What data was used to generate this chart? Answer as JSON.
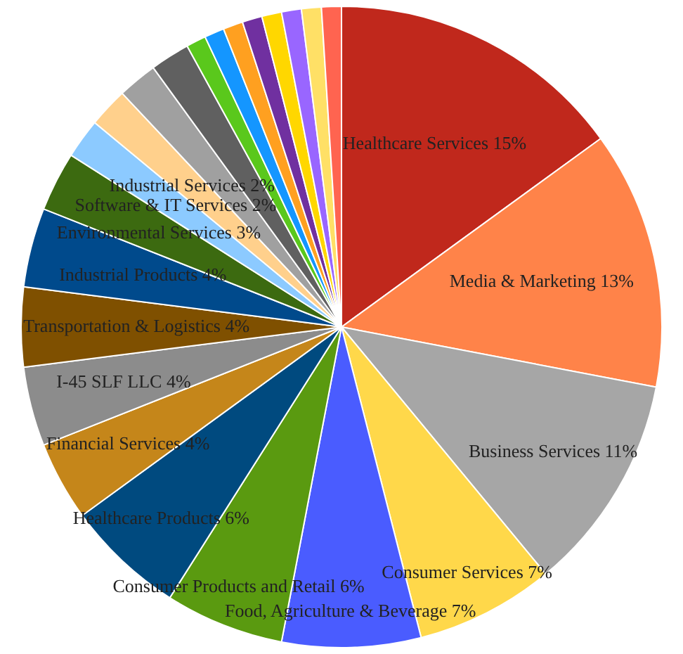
{
  "chart_data": {
    "type": "pie",
    "categories": [
      "Healthcare Services",
      "Media & Marketing",
      "Business Services",
      "Consumer Services",
      "Food, Agriculture & Beverage",
      "Consumer Products and Retail",
      "Healthcare Products",
      "Financial Services",
      "I-45 SLF LLC",
      "Transportation & Logistics",
      "Industrial Products",
      "Environmental Services",
      "Software & IT Services",
      "Industrial Services",
      null,
      null,
      null,
      null,
      null,
      null,
      null,
      null,
      null,
      null
    ],
    "values": [
      15,
      13,
      11,
      7,
      7,
      6,
      6,
      4,
      4,
      4,
      4,
      3,
      2,
      2,
      2,
      2,
      1,
      1,
      1,
      1,
      1,
      1,
      1,
      1
    ],
    "value_labels": [
      "15%",
      "13%",
      "11%",
      "7%",
      "7%",
      "6%",
      "6%",
      "4%",
      "4%",
      "4%",
      "4%",
      "3%",
      "2%",
      "2%",
      null,
      null,
      null,
      null,
      null,
      null,
      null,
      null,
      null,
      null
    ],
    "colors": [
      "#c0281c",
      "#ff8349",
      "#a6a6a6",
      "#ffd84a",
      "#4a5cff",
      "#5a9a10",
      "#004a7f",
      "#c5861a",
      "#8c8c8c",
      "#7f5000",
      "#004a8c",
      "#3c6a10",
      "#8ccaff",
      "#ffd08c",
      "#a0a0a0",
      "#606060",
      "#5ac81c",
      "#1496ff",
      "#ffa020",
      "#7030a0",
      "#ffd700",
      "#9966ff",
      "#ffe066",
      "#ff6450"
    ],
    "legend": false
  }
}
